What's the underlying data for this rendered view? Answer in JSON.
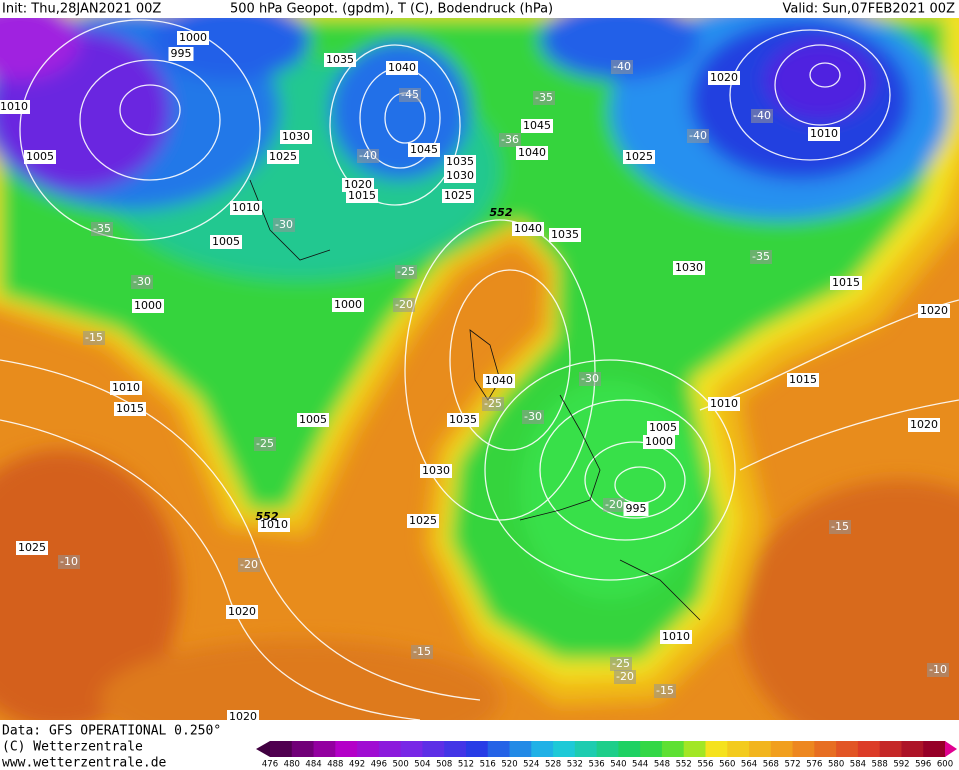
{
  "header": {
    "init": "Init: Thu,28JAN2021 00Z",
    "title": "500 hPa Geopot. (gpdm), T (C), Bodendruck (hPa)",
    "valid": "Valid: Sun,07FEB2021 00Z"
  },
  "footer": {
    "data": "Data: GFS OPERATIONAL 0.250°",
    "copyright": "(C) Wetterzentrale",
    "url": "www.wetterzentrale.de"
  },
  "colorbar": {
    "labels": [
      476,
      480,
      484,
      488,
      492,
      496,
      500,
      504,
      508,
      512,
      516,
      520,
      524,
      528,
      532,
      536,
      540,
      544,
      548,
      552,
      556,
      560,
      564,
      568,
      572,
      576,
      580,
      584,
      588,
      592,
      596,
      600
    ]
  },
  "map": {
    "contour_labels": [
      1000,
      995,
      1010,
      1005,
      1035,
      1040,
      -45,
      1030,
      1025,
      -40,
      1045,
      1035,
      1030,
      1020,
      1015,
      1025,
      1010,
      -30,
      -35,
      1005,
      1040,
      1035,
      -40,
      -35,
      1045,
      -36,
      1040,
      1025,
      1020,
      -40,
      1010,
      -40,
      1030,
      -35,
      1015,
      1020,
      -25,
      -20,
      1000,
      -30,
      1000,
      -15,
      1010,
      1015,
      1015,
      1010,
      1020,
      1040,
      -25,
      1035,
      -30,
      -30,
      1005,
      -25,
      1005,
      1000,
      1030,
      -20,
      995,
      1025,
      1010,
      -15,
      1025,
      -10,
      -20,
      1020,
      1010,
      -15,
      -25,
      -20,
      -15,
      -10,
      1020,
      552,
      552
    ]
  }
}
